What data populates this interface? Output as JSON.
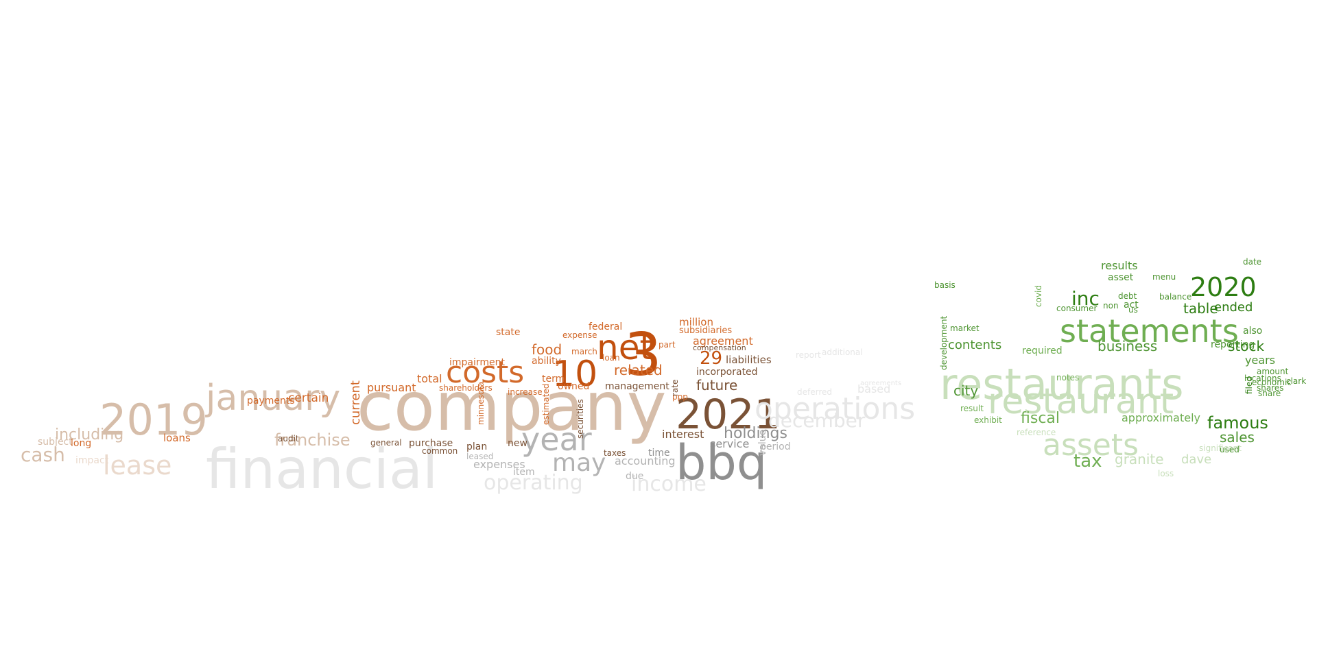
{
  "palette": {
    "orange_dark": "#c2500e",
    "orange": "#d2692a",
    "orange_light": "#e8a37a",
    "tan": "#d6bda9",
    "tan_light": "#ead9cc",
    "brown": "#7a5236",
    "gray_dark": "#8f8f8f",
    "gray": "#b3b3b3",
    "gray_light": "#e6e6e6",
    "green_dark": "#2d7d12",
    "green": "#4d9431",
    "green_mid": "#6fae52",
    "green_light": "#c8dfbb"
  },
  "words": [
    "company",
    "financial",
    "3",
    "bbq",
    "2021",
    "net",
    "costs",
    "10",
    "2019",
    "january",
    "lease",
    "year",
    "may",
    "operations",
    "december",
    "operating",
    "income",
    "holdings",
    "future",
    "related",
    "food",
    "29",
    "liabilities",
    "incorporated",
    "agreement",
    "million",
    "subsidiaries",
    "compensation",
    "franchise",
    "certain",
    "including",
    "cash",
    "loans",
    "subject",
    "long",
    "impact",
    "interest",
    "service",
    "value",
    "period",
    "current",
    "payments",
    "pursuant",
    "total",
    "owned",
    "management",
    "accounting",
    "expenses",
    "new",
    "purchase",
    "item",
    "due",
    "time",
    "taxes",
    "plan",
    "leased",
    "state",
    "ability",
    "term",
    "impairment",
    "shareholders",
    "federal",
    "expense",
    "march",
    "loan",
    "part",
    "ppp",
    "rate",
    "securities",
    "audit",
    "general",
    "common",
    "minnesota",
    "increase",
    "estimated",
    "restaurants",
    "restaurant",
    "statements",
    "assets",
    "2020",
    "inc",
    "table",
    "ended",
    "stock",
    "famous",
    "sales",
    "tax",
    "fiscal",
    "business",
    "results",
    "contents",
    "city",
    "approximately",
    "granite",
    "dave",
    "years",
    "locations",
    "amount",
    "share",
    "also",
    "required",
    "reporting",
    "asset",
    "act",
    "us",
    "covid",
    "debt",
    "non",
    "notes",
    "consumer",
    "market",
    "development",
    "exhibit",
    "result",
    "basis",
    "filed",
    "economic",
    "clark",
    "shares",
    "date",
    "menu",
    "balance",
    "significant",
    "used",
    "loss",
    "reference",
    "based",
    "deferred",
    "report",
    "additional",
    "agreements"
  ]
}
